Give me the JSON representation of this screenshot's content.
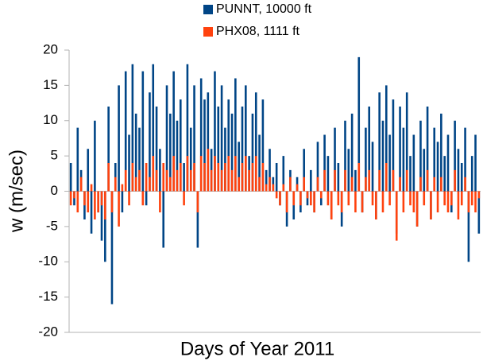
{
  "chart_data": {
    "type": "bar",
    "x_label": "Days of Year 2011",
    "y_label": "w (m/sec)",
    "ylim": [
      -20,
      20
    ],
    "yticks": [
      -20,
      -15,
      -10,
      -5,
      0,
      5,
      10,
      15,
      20
    ],
    "categories": [
      null,
      null,
      null,
      null,
      null,
      null,
      null,
      null,
      null,
      null,
      null,
      null,
      null,
      null,
      null,
      null,
      null,
      null,
      null,
      null,
      null,
      null,
      null,
      null,
      null,
      null,
      null,
      null,
      null,
      null,
      null,
      null,
      null,
      null,
      null,
      null,
      null,
      null,
      null,
      null,
      null,
      null,
      null,
      null,
      null,
      null,
      null,
      null,
      null,
      null,
      null,
      null,
      null,
      null,
      null,
      null,
      null,
      null,
      null,
      null,
      null,
      null,
      null,
      null,
      null,
      null,
      null,
      null,
      null,
      null,
      null,
      null,
      null,
      null,
      null,
      null,
      null,
      null,
      null,
      null,
      null,
      null,
      null,
      null,
      null,
      null,
      null,
      null,
      null,
      null,
      null,
      null,
      null,
      null,
      null,
      null,
      null,
      null,
      null,
      null,
      null,
      null,
      null,
      null,
      null,
      null,
      null,
      null,
      null,
      null,
      null,
      null,
      null,
      null,
      null,
      null,
      null,
      null,
      null,
      null
    ],
    "series": [
      {
        "name": "PUNNT, 10000 ft",
        "color": "#004586",
        "values": [
          4,
          -2,
          9,
          3,
          -4,
          6,
          -6,
          10,
          -3,
          -7,
          -10,
          12,
          -16,
          4,
          15,
          -3,
          17,
          8,
          18,
          11,
          9,
          17,
          -2,
          14,
          18,
          12,
          6,
          -8,
          15,
          11,
          17,
          10,
          13,
          4,
          18,
          9,
          15,
          -8,
          16,
          13,
          14,
          6,
          17,
          12,
          15,
          9,
          13,
          11,
          16,
          7,
          12,
          15,
          5,
          11,
          14,
          8,
          13,
          3,
          6,
          2,
          4,
          -2,
          5,
          -5,
          3,
          -4,
          2,
          -3,
          6,
          -2,
          3,
          -3,
          7,
          -2,
          8,
          5,
          -4,
          9,
          4,
          -5,
          10,
          6,
          11,
          3,
          19,
          -3,
          9,
          12,
          7,
          -4,
          14,
          10,
          15,
          8,
          13,
          -6,
          12,
          9,
          14,
          5,
          8,
          -5,
          10,
          6,
          12,
          -4,
          9,
          7,
          11,
          5,
          8,
          -3,
          10,
          6,
          4,
          9,
          -10,
          5,
          8,
          -6
        ]
      },
      {
        "name": "PHX08, 1111 ft",
        "color": "#ff420e",
        "values": [
          -2,
          -1,
          -3,
          2,
          -2,
          -3,
          1,
          -4,
          -3,
          -2,
          -4,
          4,
          -3,
          2,
          -5,
          1,
          3,
          -2,
          4,
          2,
          3,
          -2,
          4,
          2,
          5,
          3,
          -3,
          4,
          3,
          2,
          5,
          3,
          4,
          -2,
          5,
          3,
          4,
          -3,
          5,
          4,
          6,
          3,
          5,
          4,
          3,
          4,
          5,
          3,
          5,
          2,
          4,
          5,
          3,
          4,
          5,
          2,
          4,
          1,
          2,
          1,
          -1,
          -2,
          1,
          -3,
          2,
          -2,
          1,
          -2,
          2,
          -1,
          -2,
          -3,
          2,
          -1,
          3,
          -2,
          -4,
          3,
          -2,
          -3,
          3,
          -2,
          2,
          -3,
          4,
          -3,
          2,
          3,
          -2,
          -4,
          3,
          -3,
          4,
          -2,
          3,
          -7,
          2,
          -3,
          3,
          -2,
          -3,
          -5,
          2,
          -2,
          3,
          -4,
          2,
          -3,
          2,
          -2,
          -3,
          -2,
          3,
          -4,
          -2,
          2,
          -3,
          -2,
          -3,
          -1
        ]
      }
    ]
  }
}
